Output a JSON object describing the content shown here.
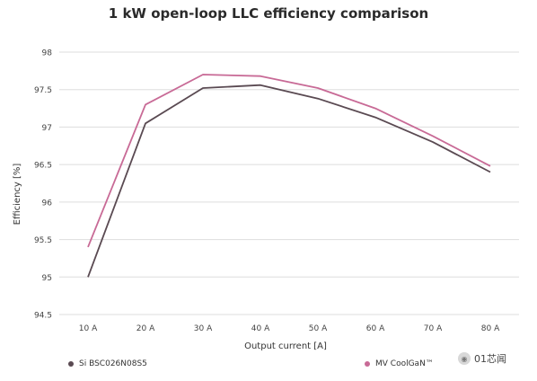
{
  "watermark": {
    "text": "01芯闻",
    "icon": "wechat-icon"
  },
  "colors": {
    "si": "#5a4a52",
    "gan": "#c86a96",
    "grid": "#dddddd"
  },
  "chart_data": {
    "type": "line",
    "title": "1 kW open-loop LLC efficiency comparison",
    "xlabel": "Output current [A]",
    "ylabel": "Efficiency [%]",
    "categories": [
      "10 A",
      "20 A",
      "30 A",
      "40 A",
      "50 A",
      "60 A",
      "70 A",
      "80 A"
    ],
    "ylim": [
      94.5,
      98
    ],
    "yticks": [
      94.5,
      95,
      95.5,
      96,
      96.5,
      97,
      97.5,
      98
    ],
    "ytick_labels": [
      "94.5",
      "95",
      "95.5",
      "96",
      "96.5",
      "97",
      "97.5",
      "98"
    ],
    "grid": "horizontal",
    "legend_position": "bottom",
    "series": [
      {
        "name": "Si BSC026N08S5",
        "color": "#5a4a52",
        "values": [
          95.0,
          97.05,
          97.52,
          97.56,
          97.38,
          97.13,
          96.8,
          96.4
        ]
      },
      {
        "name": "MV CoolGaN™",
        "color": "#c86a96",
        "values": [
          95.4,
          97.3,
          97.7,
          97.68,
          97.52,
          97.25,
          96.88,
          96.48
        ]
      }
    ]
  }
}
